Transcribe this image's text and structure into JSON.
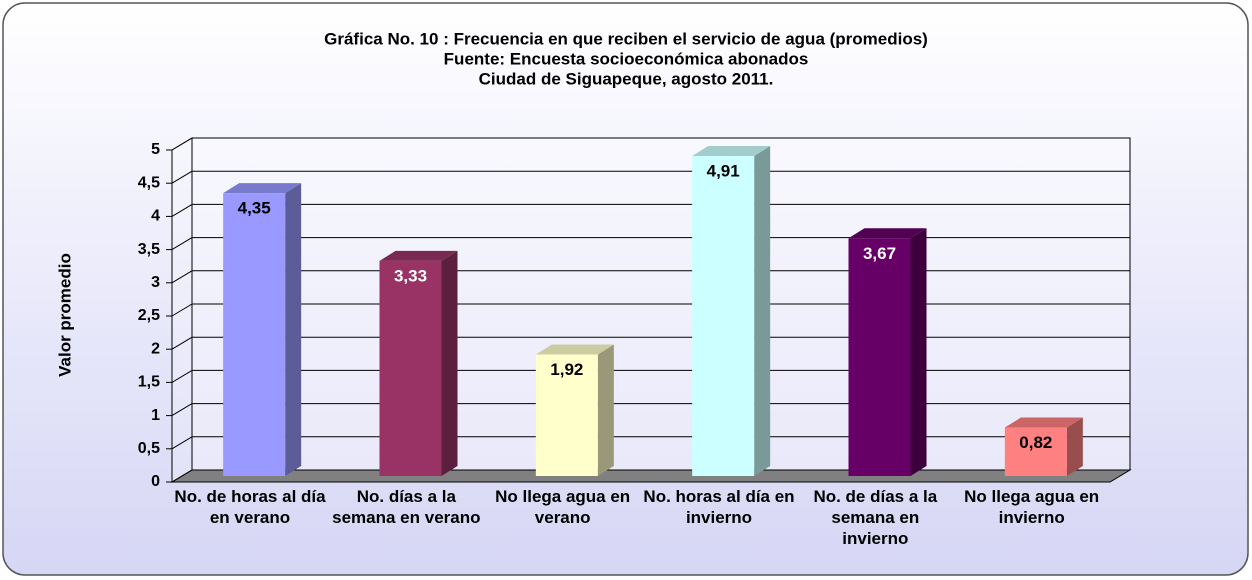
{
  "chart_data": {
    "type": "bar3d",
    "title": [
      "Gráfica No. 10 : Frecuencia en que reciben el servicio de agua (promedios)",
      "Fuente: Encuesta socioeconómica abonados",
      "Ciudad de Siguapeque, agosto 2011."
    ],
    "y_label": "Valor promedio",
    "categories": [
      "No. de horas al día en verano",
      "No. días a la semana en verano",
      "No llega agua en verano",
      "No. horas al día en invierno",
      "No. de días a la semana en invierno",
      "No llega agua en invierno"
    ],
    "values": [
      4.35,
      3.33,
      1.92,
      4.91,
      3.67,
      0.82
    ],
    "value_labels": [
      "4,35",
      "3,33",
      "1,92",
      "4,91",
      "3,67",
      "0,82"
    ],
    "colors": [
      "#9999ff",
      "#993366",
      "#ffffcc",
      "#ccffff",
      "#660066",
      "#ff8080"
    ],
    "ylim": [
      0,
      5
    ],
    "yticks": [
      0,
      {
        "value": 0.5,
        "label": "0,5"
      },
      1,
      {
        "value": 1.5,
        "label": "1,5"
      },
      2,
      {
        "value": 2.5,
        "label": "2,5"
      },
      3,
      {
        "value": 3.5,
        "label": "3,5"
      },
      4,
      {
        "value": 4.5,
        "label": "4,5"
      },
      5
    ],
    "grid": true
  }
}
